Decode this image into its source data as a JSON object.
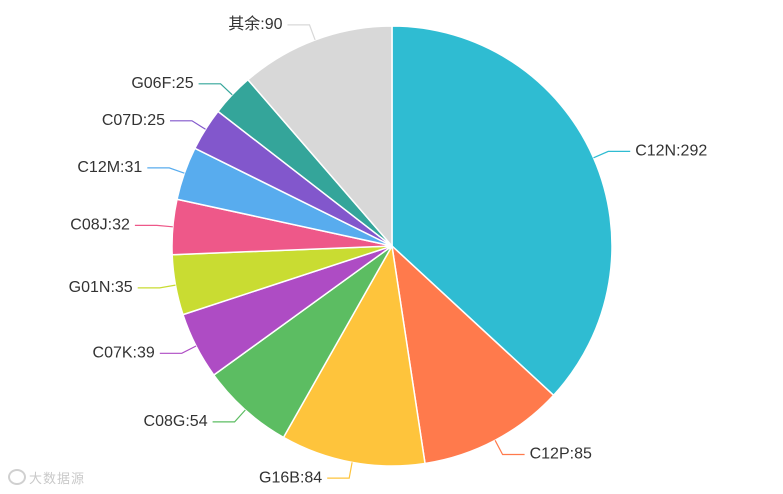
{
  "chart_data": {
    "type": "pie",
    "title": "",
    "slices": [
      {
        "label": "C12N",
        "value": 292,
        "color": "#2fbcd2"
      },
      {
        "label": "C12P",
        "value": 85,
        "color": "#ff7a4c"
      },
      {
        "label": "G16B",
        "value": 84,
        "color": "#fec43c"
      },
      {
        "label": "C08G",
        "value": 54,
        "color": "#5cbd62"
      },
      {
        "label": "C07K",
        "value": 39,
        "color": "#ae4cc4"
      },
      {
        "label": "G01N",
        "value": 35,
        "color": "#c9dc32"
      },
      {
        "label": "C08J",
        "value": 32,
        "color": "#ee5889"
      },
      {
        "label": "C12M",
        "value": 31,
        "color": "#58acee"
      },
      {
        "label": "C07D",
        "value": 25,
        "color": "#8257cc"
      },
      {
        "label": "G06F",
        "value": 25,
        "color": "#34a59a"
      },
      {
        "label": "其余",
        "value": 90,
        "color": "#d8d8d8"
      }
    ],
    "label_format": "{label}:{value}",
    "start_angle_deg": 90,
    "direction": "clockwise",
    "legend": "none"
  },
  "watermark": {
    "text": "大数据源"
  }
}
